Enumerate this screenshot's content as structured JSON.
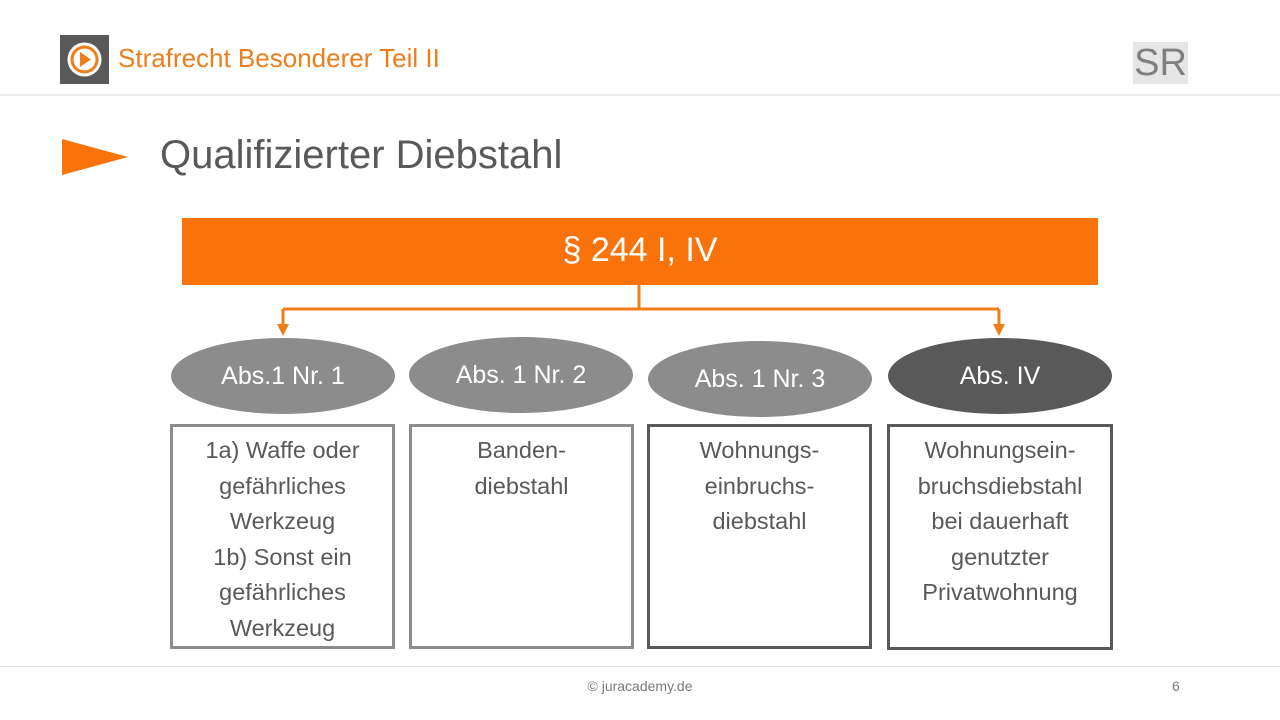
{
  "header": {
    "course_title": "Strafrecht Besonderer Teil II",
    "badge": "SR",
    "logo_icon": "play-circle-icon"
  },
  "slide": {
    "title": "Qualifizierter Diebstahl",
    "bullet_icon": "arrow-bullet-icon"
  },
  "diagram": {
    "root": "§ 244 I, IV",
    "branches": [
      {
        "label": "Abs.1 Nr. 1",
        "lines": [
          "1a) Waffe oder",
          "gefährliches",
          "Werkzeug",
          "1b) Sonst ein",
          "gefährliches",
          "Werkzeug"
        ]
      },
      {
        "label": "Abs. 1 Nr. 2",
        "lines": [
          "Banden-",
          "diebstahl"
        ]
      },
      {
        "label": "Abs. 1 Nr. 3",
        "lines": [
          "Wohnungs-",
          "einbruchs-",
          "diebstahl"
        ]
      },
      {
        "label": "Abs. IV",
        "lines": [
          "Wohnungsein-",
          "bruchsdiebstahl",
          "bei dauerhaft",
          "genutzter",
          "Privatwohnung"
        ]
      }
    ]
  },
  "footer": {
    "copyright": "© juracademy.de",
    "page_number": "6"
  },
  "colors": {
    "accent": "#f07d1a",
    "bar": "#fa720a",
    "node_gray": "#8c8c8c",
    "node_dark": "#595959",
    "text": "#595959"
  }
}
